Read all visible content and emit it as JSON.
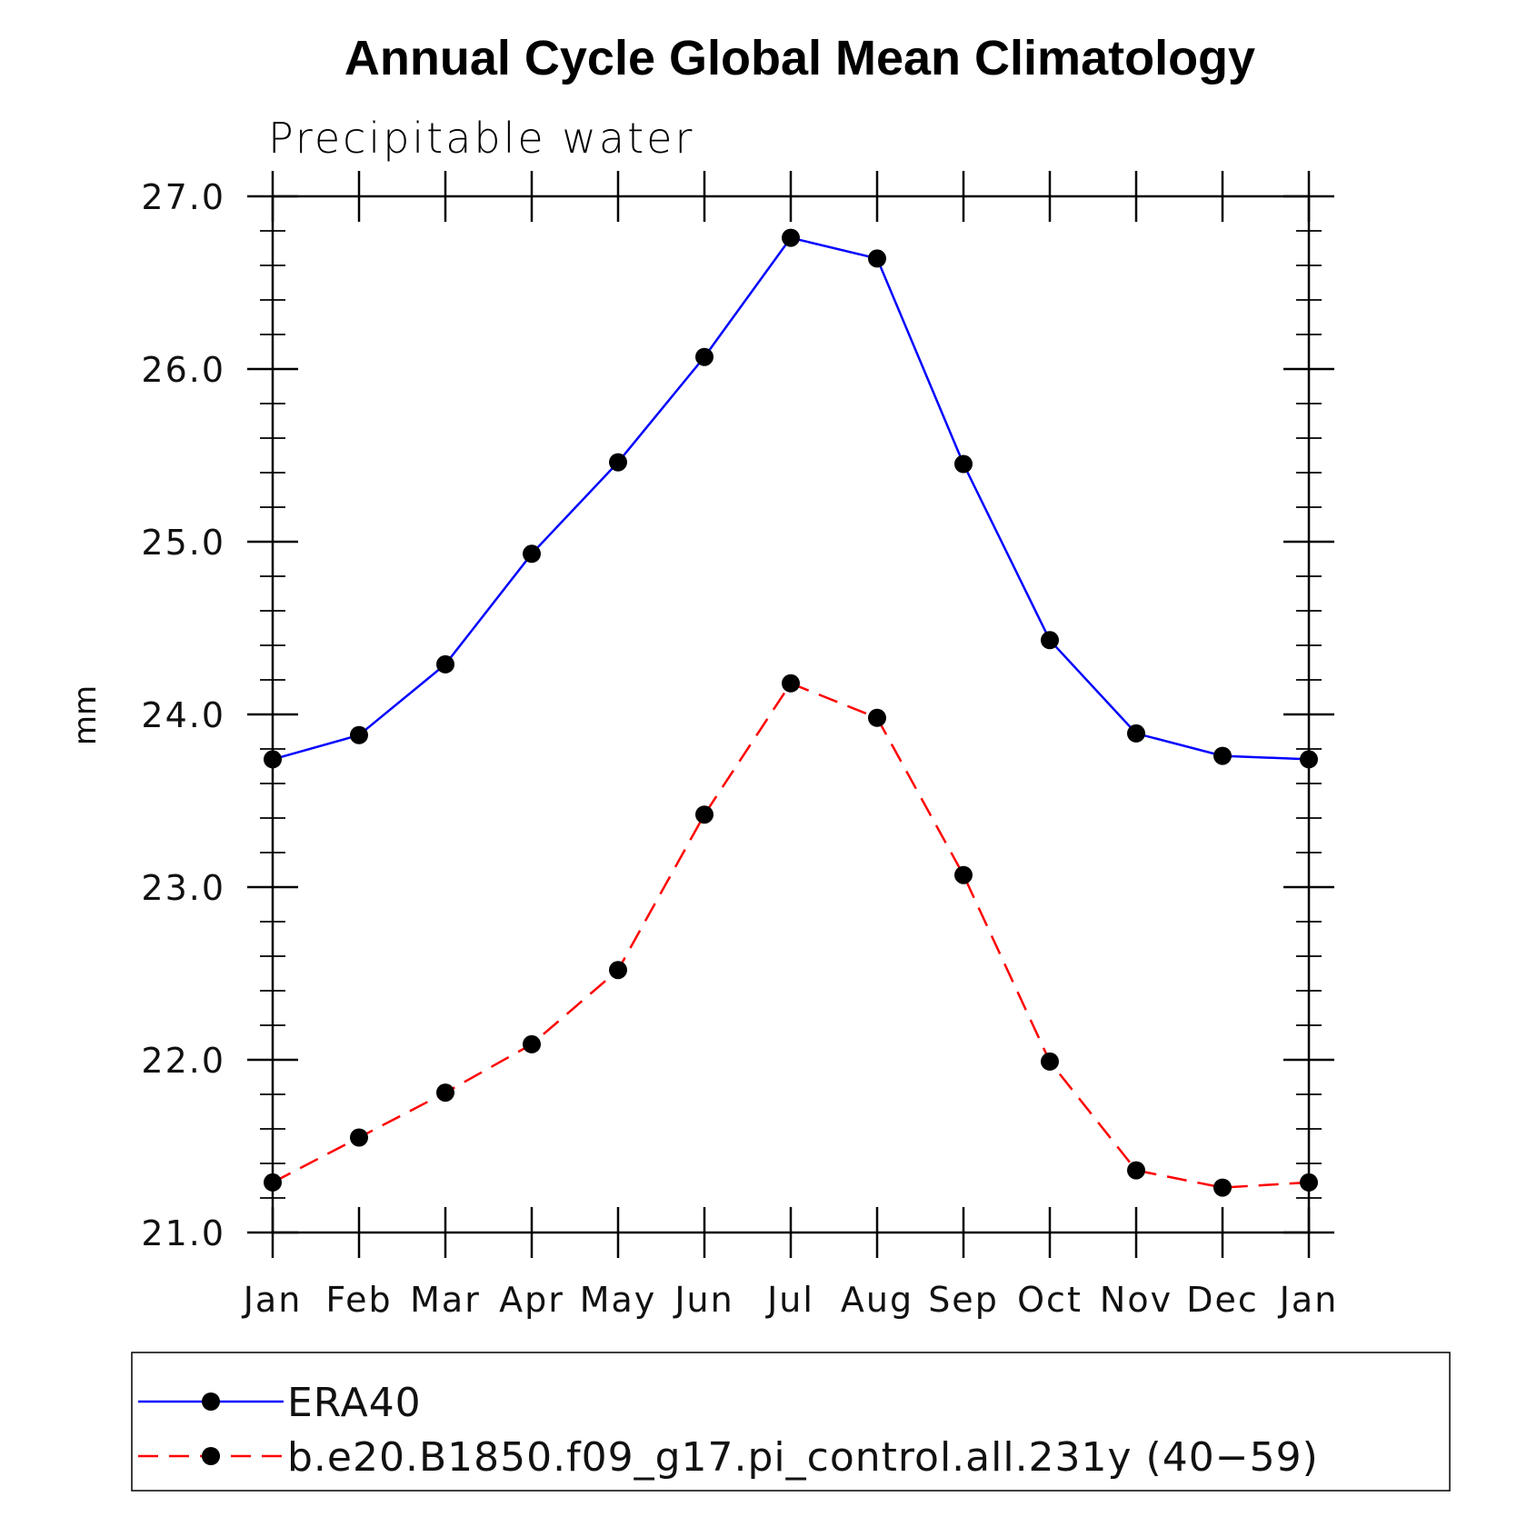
{
  "chart_data": {
    "type": "line",
    "title": "Annual Cycle Global Mean Climatology",
    "subtitle": "Precipitable water",
    "xlabel": "",
    "ylabel": "mm",
    "categories": [
      "Jan",
      "Feb",
      "Mar",
      "Apr",
      "May",
      "Jun",
      "Jul",
      "Aug",
      "Sep",
      "Oct",
      "Nov",
      "Dec",
      "Jan"
    ],
    "ylim": [
      21.0,
      27.0
    ],
    "yticks": [
      "21.0",
      "22.0",
      "23.0",
      "24.0",
      "25.0",
      "26.0",
      "27.0"
    ],
    "grid": false,
    "legend_position": "bottom",
    "series": [
      {
        "name": "ERA40",
        "color": "#0000ff",
        "line_style": "solid",
        "marker": "filled-circle",
        "values": [
          23.74,
          23.88,
          24.29,
          24.93,
          25.46,
          26.07,
          26.76,
          26.64,
          25.45,
          24.43,
          23.89,
          23.76,
          23.74
        ]
      },
      {
        "name": "b.e20.B1850.f09_g17.pi_control.all.231y (40−59)",
        "color": "#ff0000",
        "line_style": "dashed",
        "marker": "filled-circle",
        "values": [
          21.29,
          21.55,
          21.81,
          22.09,
          22.52,
          23.42,
          24.18,
          23.98,
          23.07,
          21.99,
          21.36,
          21.26,
          21.29
        ]
      }
    ]
  }
}
